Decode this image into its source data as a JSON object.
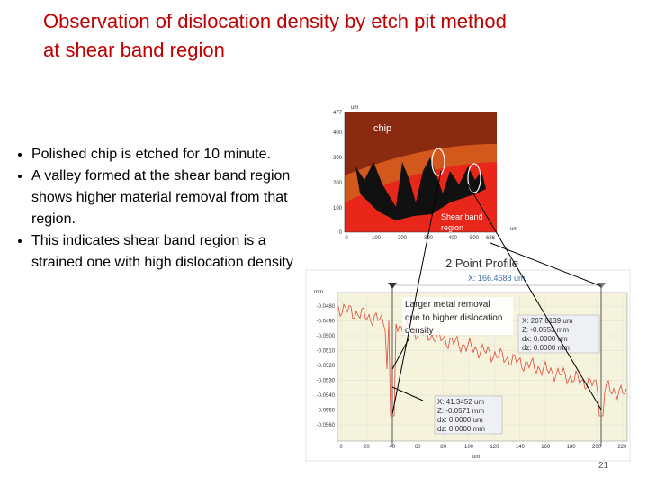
{
  "title": [
    "Observation of dislocation density by etch pit method",
    "at shear band region"
  ],
  "bullets": [
    "Polished chip is etched for 10 minute.",
    "A valley  formed  at the shear band region shows higher material removal from that region.",
    "This  indicates shear band region is a strained one with high dislocation density"
  ],
  "top_image": {
    "unit": "um",
    "label_chip": "chip",
    "label_shear": [
      "Shear band",
      "region"
    ],
    "y_ticks": [
      "477",
      "400",
      "300",
      "200",
      "100",
      "0"
    ],
    "x_ticks": [
      "0",
      "100",
      "200",
      "300",
      "400",
      "500",
      "636"
    ]
  },
  "profile": {
    "title": "2 Point Profile",
    "cursor": "X: 166.4688 um",
    "annotation": [
      "Larger metal removal",
      "due to higher dislocation",
      "density"
    ],
    "box1": [
      "X: 207.8139 um",
      "Z: -0.0553 mm",
      "dx: 0.0000 um",
      "dz: 0.0000 mm"
    ],
    "box2": [
      "X: 41.3452 um",
      "Z: -0.0571 mm",
      "dx: 0.0000 um",
      "dz: 0.0000 mm"
    ],
    "y_unit": "mm",
    "x_unit": "um",
    "y_ticks": [
      "-0.0480",
      "-0.0490",
      "-0.0500",
      "-0.0510",
      "-0.0520",
      "-0.0530",
      "-0.0540",
      "-0.0550",
      "-0.0560"
    ],
    "x_ticks": [
      "0",
      "20",
      "40",
      "60",
      "80",
      "100",
      "120",
      "140",
      "160",
      "180",
      "200",
      "220"
    ]
  },
  "page_number": "21"
}
